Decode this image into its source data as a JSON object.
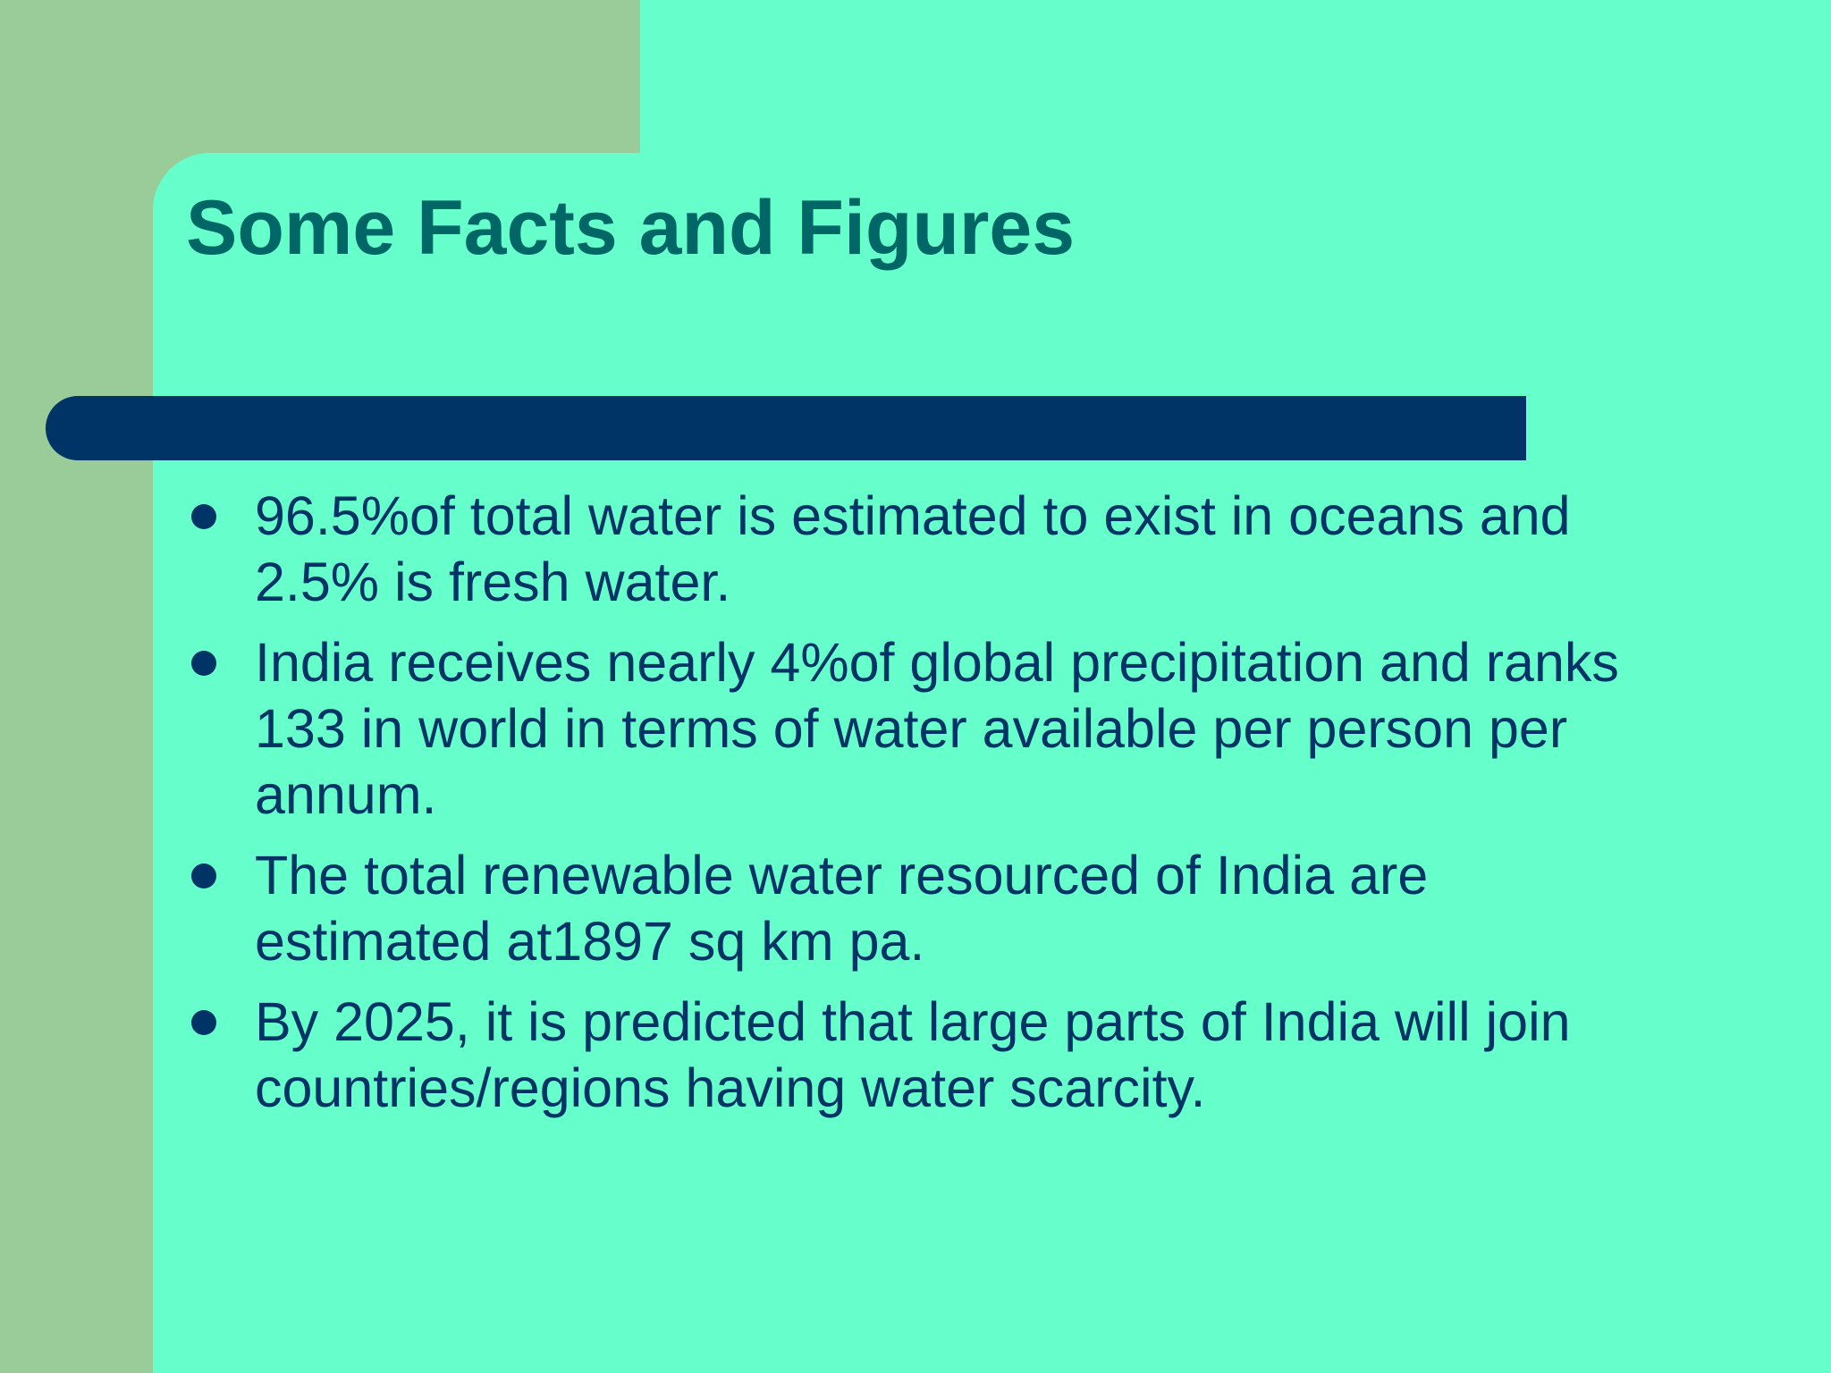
{
  "slide": {
    "title": "Some Facts and Figures",
    "bullets": [
      "96.5%of total water is estimated to exist in oceans and 2.5% is fresh water.",
      "India receives nearly 4%of global precipitation and ranks 133 in world in terms of water available per person per annum.",
      "The total renewable water resourced of India are estimated at1897 sq km pa.",
      "By 2025, it is predicted that large parts of India will join countries/regions having water scarcity."
    ]
  },
  "colors": {
    "background": "#66FFCC",
    "left_strip": "#99CC99",
    "title_text": "#006666",
    "body_text": "#003366",
    "rule_bar": "#003366"
  }
}
